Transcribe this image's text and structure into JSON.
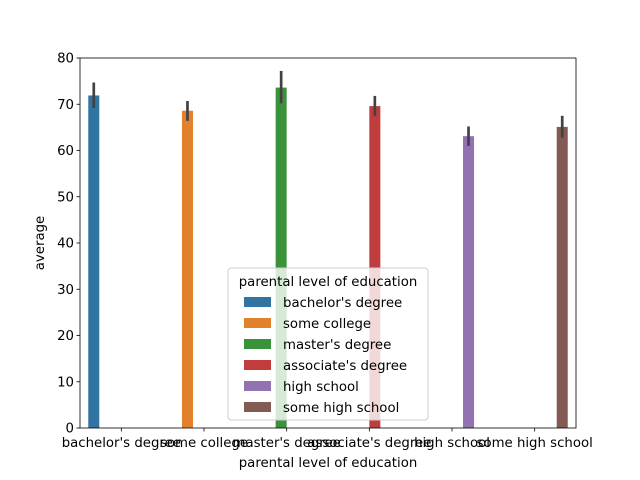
{
  "chart_data": {
    "type": "bar",
    "categories": [
      "bachelor's degree",
      "some college",
      "master's degree",
      "associate's degree",
      "high school",
      "some high school"
    ],
    "series": [
      {
        "name": "bachelor's degree",
        "color": "#3274a1"
      },
      {
        "name": "some college",
        "color": "#e1812c"
      },
      {
        "name": "master's degree",
        "color": "#3a923a"
      },
      {
        "name": "associate's degree",
        "color": "#c03d3e"
      },
      {
        "name": "high school",
        "color": "#9372b2"
      },
      {
        "name": "some high school",
        "color": "#845b53"
      }
    ],
    "values": [
      71.9,
      68.6,
      73.6,
      69.6,
      63.1,
      65.1
    ],
    "error_low": [
      69.2,
      66.4,
      70.2,
      67.5,
      61.0,
      62.8
    ],
    "error_high": [
      74.7,
      70.7,
      77.2,
      71.8,
      65.2,
      67.5
    ],
    "xlabel": "parental level of education",
    "ylabel": "average",
    "ylim": [
      0,
      80
    ],
    "yticks": [
      0,
      10,
      20,
      30,
      40,
      50,
      60,
      70,
      80
    ],
    "legend": {
      "title": "parental level of education",
      "placement": "lower center"
    },
    "grid": false
  }
}
